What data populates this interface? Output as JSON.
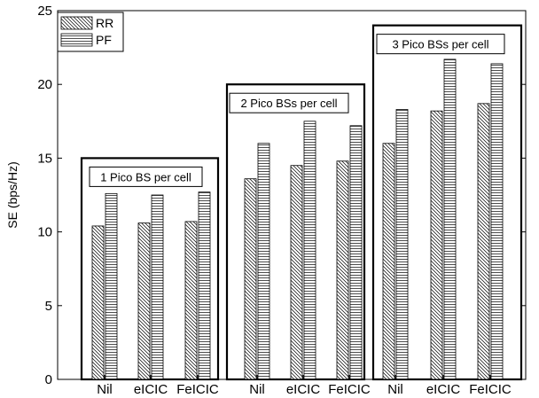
{
  "chart_data": {
    "type": "bar",
    "ylabel": "SE (bps/Hz)",
    "ylim": [
      0,
      25
    ],
    "yticks": [
      0,
      5,
      10,
      15,
      20,
      25
    ],
    "categories": [
      "Nil",
      "eICIC",
      "FeICIC",
      "Nil",
      "eICIC",
      "FeICIC",
      "Nil",
      "eICIC",
      "FeICIC"
    ],
    "series": [
      {
        "name": "RR",
        "pattern": "diagonal",
        "values": [
          10.4,
          10.6,
          10.7,
          13.6,
          14.5,
          14.8,
          16.0,
          18.2,
          18.7
        ]
      },
      {
        "name": "PF",
        "pattern": "horizontal",
        "values": [
          12.6,
          12.5,
          12.7,
          16.0,
          17.5,
          17.2,
          18.3,
          21.7,
          21.4
        ]
      }
    ],
    "groups": [
      {
        "label": "1 Pico BS per cell",
        "top": 15
      },
      {
        "label": "2 Pico BSs per cell",
        "top": 20
      },
      {
        "label": "3 Pico BSs per cell",
        "top": 24
      }
    ],
    "legend_position": "top-left",
    "grid": false
  }
}
